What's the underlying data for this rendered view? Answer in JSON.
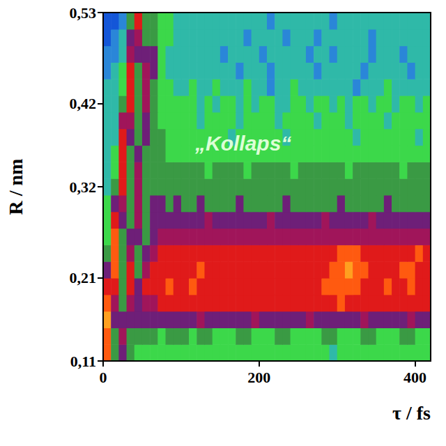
{
  "chart_data": {
    "type": "heatmap",
    "x_label": "τ / fs",
    "y_label": "R / nm",
    "annotations": [
      "„Kollaps“"
    ],
    "xlim": [
      0,
      420
    ],
    "xticks": [
      0,
      200,
      400
    ],
    "ylim": [
      0.11,
      0.53
    ],
    "yticks": [
      {
        "value": 0.11,
        "label": "0,11"
      },
      {
        "value": 0.21,
        "label": "0,21"
      },
      {
        "value": 0.32,
        "label": "0,32"
      },
      {
        "value": 0.42,
        "label": "0,42"
      },
      {
        "value": 0.53,
        "label": "0,53"
      }
    ],
    "value_range": [
      0,
      10
    ],
    "x": [
      5,
      15,
      25,
      35,
      45,
      55,
      65,
      75,
      85,
      95,
      105,
      115,
      125,
      135,
      145,
      155,
      165,
      175,
      185,
      195,
      205,
      215,
      225,
      235,
      245,
      255,
      265,
      275,
      285,
      295,
      305,
      315,
      325,
      335,
      345,
      355,
      365,
      375,
      385,
      395,
      405,
      415
    ],
    "y": [
      0.12,
      0.14,
      0.16,
      0.18,
      0.2,
      0.22,
      0.24,
      0.26,
      0.28,
      0.3,
      0.32,
      0.34,
      0.36,
      0.38,
      0.4,
      0.42,
      0.44,
      0.46,
      0.48,
      0.5,
      0.52
    ],
    "values": [
      [
        9,
        5,
        6,
        5,
        4,
        4,
        4,
        4,
        4,
        4,
        4,
        4,
        4,
        4,
        4,
        4,
        4,
        4,
        4,
        4,
        4,
        4,
        4,
        4,
        4,
        4,
        4,
        4,
        4,
        3,
        4,
        4,
        4,
        4,
        4,
        4,
        4,
        4,
        4,
        4,
        4,
        4
      ],
      [
        9,
        5,
        7,
        5,
        5,
        5,
        5,
        4,
        5,
        5,
        5,
        4,
        5,
        5,
        4,
        4,
        4,
        5,
        5,
        4,
        4,
        4,
        5,
        5,
        4,
        4,
        4,
        4,
        5,
        5,
        4,
        4,
        4,
        5,
        5,
        4,
        4,
        4,
        5,
        5,
        4,
        4
      ],
      [
        10,
        6,
        6,
        6,
        6,
        6,
        6,
        6,
        6,
        6,
        6,
        6,
        7,
        6,
        6,
        6,
        6,
        6,
        6,
        7,
        6,
        6,
        6,
        6,
        6,
        6,
        7,
        6,
        6,
        6,
        6,
        6,
        6,
        7,
        6,
        6,
        6,
        6,
        6,
        7,
        6,
        6
      ],
      [
        9,
        7,
        5,
        7,
        6,
        7,
        7,
        8,
        8,
        8,
        8,
        8,
        8,
        8,
        8,
        8,
        8,
        8,
        8,
        8,
        8,
        8,
        8,
        8,
        8,
        8,
        8,
        8,
        8,
        8,
        9,
        8,
        8,
        8,
        8,
        8,
        8,
        8,
        8,
        8,
        8,
        8
      ],
      [
        8,
        8,
        5,
        8,
        6,
        8,
        8,
        8,
        9,
        8,
        8,
        9,
        8,
        8,
        8,
        8,
        8,
        8,
        8,
        8,
        8,
        8,
        8,
        8,
        8,
        8,
        8,
        8,
        9,
        9,
        9,
        9,
        9,
        8,
        8,
        8,
        9,
        8,
        8,
        9,
        8,
        8
      ],
      [
        6,
        9,
        5,
        8,
        5,
        7,
        8,
        8,
        8,
        8,
        8,
        8,
        9,
        8,
        8,
        8,
        8,
        8,
        8,
        8,
        8,
        8,
        8,
        8,
        8,
        8,
        8,
        8,
        8,
        9,
        9,
        10,
        9,
        9,
        8,
        8,
        8,
        8,
        9,
        9,
        8,
        8
      ],
      [
        5,
        9,
        5,
        7,
        5,
        6,
        7,
        8,
        8,
        8,
        8,
        8,
        8,
        8,
        8,
        8,
        8,
        8,
        8,
        8,
        8,
        8,
        8,
        8,
        8,
        8,
        8,
        8,
        8,
        8,
        9,
        9,
        9,
        8,
        8,
        8,
        8,
        8,
        8,
        8,
        9,
        8
      ],
      [
        4,
        9,
        5,
        6,
        6,
        5,
        6,
        7,
        7,
        7,
        7,
        7,
        7,
        7,
        7,
        7,
        7,
        7,
        7,
        7,
        7,
        7,
        7,
        7,
        7,
        7,
        7,
        7,
        7,
        7,
        7,
        7,
        7,
        7,
        7,
        7,
        7,
        7,
        7,
        7,
        7,
        7
      ],
      [
        4,
        8,
        6,
        5,
        7,
        5,
        6,
        6,
        6,
        6,
        6,
        6,
        6,
        7,
        6,
        6,
        6,
        6,
        6,
        6,
        6,
        7,
        6,
        6,
        6,
        6,
        6,
        6,
        7,
        6,
        6,
        6,
        6,
        6,
        7,
        6,
        6,
        6,
        6,
        6,
        6,
        6
      ],
      [
        4,
        6,
        7,
        5,
        7,
        5,
        6,
        6,
        5,
        6,
        5,
        5,
        6,
        5,
        5,
        5,
        5,
        6,
        5,
        5,
        5,
        5,
        5,
        6,
        5,
        5,
        5,
        5,
        5,
        5,
        6,
        5,
        5,
        5,
        5,
        5,
        6,
        5,
        5,
        5,
        5,
        5
      ],
      [
        3,
        5,
        8,
        5,
        7,
        5,
        5,
        5,
        5,
        5,
        5,
        5,
        5,
        5,
        5,
        5,
        5,
        5,
        5,
        5,
        5,
        5,
        5,
        5,
        5,
        5,
        5,
        5,
        5,
        5,
        5,
        5,
        5,
        5,
        5,
        5,
        5,
        5,
        5,
        5,
        5,
        5
      ],
      [
        3,
        4,
        8,
        5,
        7,
        5,
        5,
        5,
        5,
        5,
        5,
        5,
        5,
        4,
        5,
        5,
        5,
        5,
        4,
        5,
        5,
        5,
        5,
        5,
        4,
        5,
        5,
        5,
        5,
        5,
        5,
        4,
        5,
        5,
        5,
        5,
        5,
        5,
        4,
        5,
        5,
        5
      ],
      [
        3,
        4,
        8,
        5,
        6,
        5,
        5,
        5,
        4,
        4,
        4,
        4,
        4,
        4,
        4,
        4,
        4,
        4,
        4,
        4,
        4,
        4,
        4,
        4,
        4,
        4,
        4,
        4,
        4,
        4,
        4,
        4,
        4,
        4,
        4,
        4,
        4,
        4,
        4,
        4,
        4,
        4
      ],
      [
        3,
        3,
        8,
        6,
        5,
        6,
        5,
        5,
        4,
        4,
        4,
        4,
        4,
        4,
        4,
        4,
        3,
        4,
        4,
        4,
        4,
        4,
        4,
        3,
        4,
        4,
        4,
        4,
        4,
        4,
        4,
        4,
        3,
        4,
        4,
        4,
        4,
        4,
        4,
        4,
        3,
        4
      ],
      [
        3,
        3,
        7,
        7,
        5,
        6,
        5,
        4,
        4,
        4,
        4,
        4,
        3,
        4,
        4,
        4,
        4,
        3,
        4,
        4,
        4,
        4,
        3,
        4,
        4,
        4,
        4,
        3,
        4,
        4,
        4,
        3,
        4,
        4,
        4,
        4,
        3,
        4,
        4,
        4,
        4,
        4
      ],
      [
        3,
        3,
        5,
        8,
        5,
        7,
        5,
        4,
        4,
        4,
        4,
        4,
        3,
        4,
        3,
        4,
        4,
        3,
        4,
        3,
        4,
        4,
        3,
        3,
        4,
        4,
        3,
        4,
        4,
        3,
        4,
        3,
        4,
        4,
        3,
        4,
        4,
        3,
        4,
        4,
        3,
        4
      ],
      [
        3,
        3,
        4,
        8,
        5,
        7,
        5,
        4,
        4,
        3,
        3,
        4,
        3,
        3,
        4,
        3,
        3,
        3,
        4,
        3,
        3,
        2,
        3,
        3,
        4,
        3,
        3,
        3,
        3,
        3,
        3,
        3,
        2,
        3,
        3,
        3,
        4,
        3,
        3,
        3,
        3,
        3
      ],
      [
        2,
        3,
        4,
        8,
        5,
        7,
        6,
        4,
        3,
        3,
        3,
        3,
        3,
        3,
        3,
        3,
        3,
        2,
        3,
        3,
        3,
        2,
        3,
        3,
        3,
        3,
        3,
        2,
        3,
        3,
        3,
        3,
        3,
        2,
        3,
        3,
        3,
        3,
        3,
        2,
        3,
        3
      ],
      [
        2,
        2,
        3,
        7,
        6,
        6,
        6,
        4,
        3,
        3,
        3,
        3,
        3,
        3,
        3,
        2,
        3,
        3,
        3,
        3,
        2,
        3,
        3,
        3,
        3,
        3,
        2,
        3,
        3,
        2,
        3,
        3,
        3,
        3,
        2,
        3,
        3,
        3,
        2,
        3,
        3,
        3
      ],
      [
        1,
        2,
        3,
        6,
        7,
        5,
        5,
        4,
        4,
        3,
        3,
        3,
        3,
        3,
        3,
        3,
        3,
        3,
        2,
        3,
        3,
        3,
        3,
        2,
        3,
        3,
        3,
        2,
        3,
        3,
        3,
        3,
        3,
        3,
        2,
        3,
        3,
        3,
        3,
        3,
        3,
        3
      ],
      [
        1,
        1,
        2,
        5,
        8,
        5,
        5,
        4,
        4,
        3,
        3,
        3,
        3,
        3,
        3,
        3,
        3,
        3,
        3,
        3,
        3,
        2,
        3,
        3,
        3,
        3,
        3,
        3,
        3,
        2,
        3,
        3,
        3,
        3,
        3,
        3,
        3,
        3,
        3,
        3,
        3,
        3
      ]
    ]
  }
}
